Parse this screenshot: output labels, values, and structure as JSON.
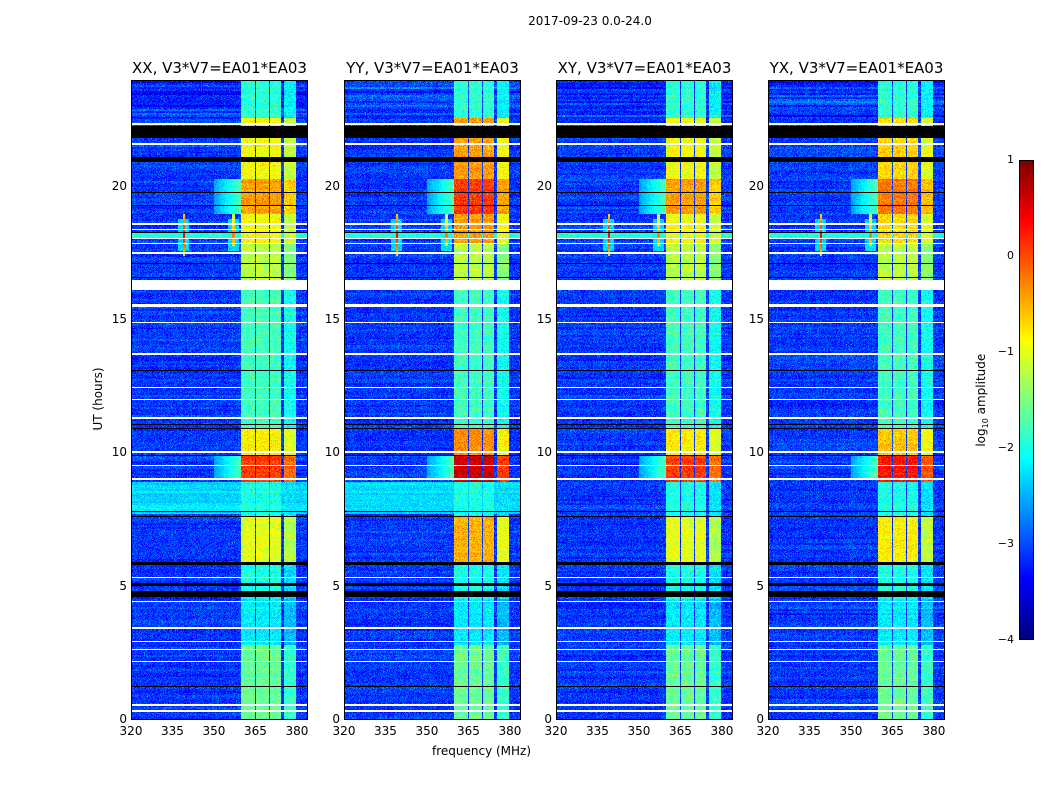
{
  "figure": {
    "suptitle": "2017-09-23 0.0-24.0"
  },
  "chart_data": {
    "type": "heatmap",
    "xlabel": "frequency (MHz)",
    "ylabel": "UT (hours)",
    "xlim": [
      320,
      384
    ],
    "ylim": [
      0,
      24
    ],
    "xticks": [
      "320",
      "335",
      "350",
      "365",
      "380"
    ],
    "yticks": [
      "0",
      "5",
      "10",
      "15",
      "20"
    ],
    "xtick_values": [
      320,
      335,
      350,
      365,
      380
    ],
    "ytick_values": [
      0,
      5,
      10,
      15,
      20
    ],
    "panels": [
      {
        "title": "XX, V3*V7=EA01*EA03",
        "pol": "XX",
        "parallel": true,
        "rfi_boost": 0
      },
      {
        "title": "YY, V3*V7=EA01*EA03",
        "pol": "YY",
        "parallel": true,
        "rfi_boost": 0.5
      },
      {
        "title": "XY, V3*V7=EA01*EA03",
        "pol": "XY",
        "parallel": false,
        "rfi_boost": 0
      },
      {
        "title": "YX, V3*V7=EA01*EA03",
        "pol": "YX",
        "parallel": false,
        "rfi_boost": 0.2
      }
    ],
    "colorbar": {
      "label": "log10 amplitude",
      "label_main": "log",
      "label_sub": "10",
      "label_rest": " amplitude",
      "colormap": "jet",
      "range": [
        -4,
        1
      ],
      "ticks": [
        "1",
        "0",
        "−1",
        "−2",
        "−3",
        "−4"
      ],
      "tick_values": [
        1,
        0,
        -1,
        -2,
        -3,
        -4
      ]
    },
    "background_level": -3.1,
    "rfi_channels_mhz": [
      [
        360,
        365
      ],
      [
        365.5,
        370
      ],
      [
        370.5,
        374.5
      ],
      [
        375.5,
        380
      ]
    ],
    "rfi_levels_by_time": [
      {
        "t": [
          0,
          2.8
        ],
        "v": -1.6
      },
      {
        "t": [
          2.8,
          4.5
        ],
        "v": -2.2
      },
      {
        "t": [
          4.5,
          5.9
        ],
        "v": -2.0
      },
      {
        "t": [
          5.9,
          7.6
        ],
        "v": -1.0
      },
      {
        "t": [
          7.6,
          8.9
        ],
        "v": -2.0
      },
      {
        "t": [
          8.9,
          9.9
        ],
        "v": 0.1
      },
      {
        "t": [
          9.9,
          10.9
        ],
        "v": -0.8
      },
      {
        "t": [
          10.9,
          16.5
        ],
        "v": -1.8
      },
      {
        "t": [
          16.5,
          17.9
        ],
        "v": -1.2
      },
      {
        "t": [
          17.9,
          19.0
        ],
        "v": -0.9
      },
      {
        "t": [
          19.0,
          20.3
        ],
        "v": -0.4
      },
      {
        "t": [
          20.3,
          22.6
        ],
        "v": -0.9
      },
      {
        "t": [
          22.6,
          24
        ],
        "v": -1.9
      }
    ],
    "parallel_hand_band_hours": [
      7.7,
      8.9
    ],
    "broadband_event_hours": [
      18.1,
      18.3
    ],
    "narrowband_spikes": [
      {
        "f": 339,
        "t": [
          17.4,
          19.0
        ],
        "peak": 0.4
      },
      {
        "f": 357,
        "t": [
          17.8,
          19.0
        ],
        "peak": -0.2
      }
    ],
    "flagged_white_hours": [
      [
        0.25,
        0.32
      ],
      [
        0.5,
        0.56
      ],
      [
        2.15,
        2.2
      ],
      [
        2.6,
        2.65
      ],
      [
        2.9,
        2.95
      ],
      [
        3.4,
        3.45
      ],
      [
        4.4,
        4.45
      ],
      [
        5.3,
        5.35
      ],
      [
        9.0,
        9.05
      ],
      [
        9.5,
        9.55
      ],
      [
        10.0,
        10.08
      ],
      [
        11.3,
        11.35
      ],
      [
        12.0,
        12.05
      ],
      [
        12.45,
        12.5
      ],
      [
        13.7,
        13.75
      ],
      [
        14.9,
        14.95
      ],
      [
        15.5,
        15.62
      ],
      [
        16.15,
        16.5
      ],
      [
        17.5,
        17.55
      ],
      [
        17.85,
        17.9
      ],
      [
        18.05,
        18.1
      ],
      [
        18.4,
        18.45
      ],
      [
        18.6,
        18.65
      ],
      [
        21.6,
        21.65
      ],
      [
        22.35,
        22.42
      ]
    ],
    "flagged_black_hours": [
      [
        1.2,
        1.24
      ],
      [
        4.6,
        4.8
      ],
      [
        5.0,
        5.1
      ],
      [
        5.8,
        5.92
      ],
      [
        7.6,
        7.64
      ],
      [
        7.8,
        7.84
      ],
      [
        9.9,
        9.94
      ],
      [
        10.9,
        10.94
      ],
      [
        11.05,
        11.09
      ],
      [
        13.1,
        13.14
      ],
      [
        16.6,
        16.64
      ],
      [
        17.1,
        17.14
      ],
      [
        18.3,
        18.33
      ],
      [
        19.3,
        19.33
      ],
      [
        19.8,
        19.83
      ],
      [
        20.95,
        21.15
      ],
      [
        21.85,
        22.3
      ]
    ]
  }
}
